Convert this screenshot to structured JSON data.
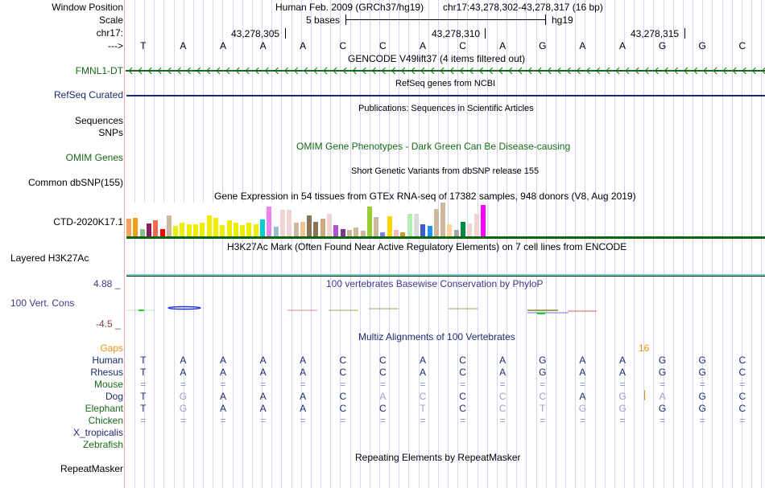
{
  "header": {
    "window_position_label": "Window Position",
    "scale_label": "Scale",
    "chrom_label": "chr17:",
    "strand_label": "--->",
    "assembly": "Human Feb. 2009 (GRCh37/hg19)",
    "position": "chr17:43,278,302-43,278,317 (16 bp)",
    "scale_text": "5 bases",
    "scale_db": "hg19",
    "ticks": [
      "43,278,305",
      "43,278,310",
      "43,278,315"
    ]
  },
  "reference_bases": [
    "T",
    "A",
    "A",
    "A",
    "A",
    "C",
    "C",
    "A",
    "C",
    "A",
    "G",
    "A",
    "A",
    "G",
    "G",
    "C"
  ],
  "tracks": {
    "gencode": {
      "title": "GENCODE V49lift37 (4 items filtered out)",
      "label": "FMNL1-DT",
      "color": "#166a16"
    },
    "refseq": {
      "title": "RefSeq genes from NCBI",
      "label": "RefSeq Curated",
      "color": "#1c2a6b"
    },
    "publications": {
      "title": "Publications: Sequences in Scientific Articles",
      "labels": [
        "Sequences",
        "SNPs"
      ]
    },
    "omim": {
      "title": "OMIM Gene Phenotypes - Dark Green Can Be Disease-causing",
      "label": "OMIM Genes",
      "color": "#166a16"
    },
    "dbsnp": {
      "title": "Short Genetic Variants from dbSNP release 155",
      "label": "Common dbSNP(155)"
    },
    "gtex": {
      "title": "Gene Expression in 54 tissues from GTEx RNA-seq of 17382 samples, 948 donors (V8, Aug 2019)",
      "label": "CTD-2020K17.1",
      "bars": [
        {
          "v": 0.52,
          "c": "#f6a05a"
        },
        {
          "v": 0.55,
          "c": "#eea01a"
        },
        {
          "v": 0.22,
          "c": "#8fbc8f"
        },
        {
          "v": 0.38,
          "c": "#8b1c62"
        },
        {
          "v": 0.48,
          "c": "#ee6a50"
        },
        {
          "v": 0.22,
          "c": "#ff0000"
        },
        {
          "v": 0.62,
          "c": "#cdb79e"
        },
        {
          "v": 0.3,
          "c": "#eeee00"
        },
        {
          "v": 0.4,
          "c": "#eeee00"
        },
        {
          "v": 0.36,
          "c": "#eeee00"
        },
        {
          "v": 0.36,
          "c": "#eeee00"
        },
        {
          "v": 0.4,
          "c": "#eeee00"
        },
        {
          "v": 0.63,
          "c": "#eeee00"
        },
        {
          "v": 0.54,
          "c": "#eeee00"
        },
        {
          "v": 0.33,
          "c": "#eeee00"
        },
        {
          "v": 0.48,
          "c": "#eeee00"
        },
        {
          "v": 0.4,
          "c": "#eeee00"
        },
        {
          "v": 0.33,
          "c": "#eeee00"
        },
        {
          "v": 0.4,
          "c": "#eeee00"
        },
        {
          "v": 0.36,
          "c": "#eeee00"
        },
        {
          "v": 0.5,
          "c": "#00cdcd"
        },
        {
          "v": 0.89,
          "c": "#ee82ee"
        },
        {
          "v": 0.28,
          "c": "#9ac0cd"
        },
        {
          "v": 0.78,
          "c": "#eed5d2"
        },
        {
          "v": 0.78,
          "c": "#eed5d2"
        },
        {
          "v": 0.4,
          "c": "#cdb79e"
        },
        {
          "v": 0.43,
          "c": "#eec591"
        },
        {
          "v": 0.63,
          "c": "#8b7355"
        },
        {
          "v": 0.43,
          "c": "#8b7355"
        },
        {
          "v": 0.52,
          "c": "#cdaa7d"
        },
        {
          "v": 0.66,
          "c": "#eed5d2"
        },
        {
          "v": 0.33,
          "c": "#b452cd"
        },
        {
          "v": 0.22,
          "c": "#7a378b"
        },
        {
          "v": 0.19,
          "c": "#cdb79e"
        },
        {
          "v": 0.27,
          "c": "#cdb79e"
        },
        {
          "v": 0.17,
          "c": "#cdb79e"
        },
        {
          "v": 0.89,
          "c": "#9acd32"
        },
        {
          "v": 0.57,
          "c": "#cdb79e"
        },
        {
          "v": 0.11,
          "c": "#7f7fff"
        },
        {
          "v": 0.6,
          "c": "#ffd700"
        },
        {
          "v": 0.19,
          "c": "#ffb6c1"
        },
        {
          "v": 0.11,
          "c": "#cd9b1d"
        },
        {
          "v": 0.66,
          "c": "#b4eeb4"
        },
        {
          "v": 0.66,
          "c": "#d9d9d9"
        },
        {
          "v": 0.36,
          "c": "#3a5fcd"
        },
        {
          "v": 0.3,
          "c": "#1e90ff"
        },
        {
          "v": 0.8,
          "c": "#cdb79e"
        },
        {
          "v": 1.0,
          "c": "#cdb79e"
        },
        {
          "v": 0.36,
          "c": "#ffd39b"
        },
        {
          "v": 0.19,
          "c": "#a6a6a6"
        },
        {
          "v": 0.43,
          "c": "#008b45"
        },
        {
          "v": 0.38,
          "c": "#eed5d2"
        },
        {
          "v": 0.66,
          "c": "#eed5d2"
        },
        {
          "v": 0.93,
          "c": "#ff00ff"
        }
      ]
    },
    "h3k27ac": {
      "title": "H3K27Ac Mark (Often Found Near Active Regulatory Elements) on 7 cell lines from ENCODE",
      "label": "Layered H3K27Ac"
    },
    "phylop": {
      "title": "100 vertebrates Basewise Conservation by PhyloP",
      "label": "100 Vert. Cons",
      "max_label": "4.88 _",
      "min_label": "-4.5 _"
    },
    "multiz": {
      "title": "Multiz Alignments of 100 Vertebrates",
      "gaps_label": "Gaps",
      "gap_count": "16",
      "species": [
        {
          "name": "Human",
          "color": "navy",
          "bases": [
            "T",
            "A",
            "A",
            "A",
            "A",
            "C",
            "C",
            "A",
            "C",
            "A",
            "G",
            "A",
            "A",
            "G",
            "G",
            "C"
          ],
          "style": [
            "d",
            "d",
            "d",
            "d",
            "d",
            "d",
            "d",
            "d",
            "d",
            "d",
            "d",
            "d",
            "d",
            "d",
            "d",
            "d"
          ]
        },
        {
          "name": "Rhesus",
          "color": "navy",
          "bases": [
            "T",
            "A",
            "A",
            "A",
            "A",
            "C",
            "C",
            "A",
            "C",
            "A",
            "G",
            "A",
            "A",
            "G",
            "G",
            "C"
          ],
          "style": [
            "d",
            "d",
            "d",
            "d",
            "d",
            "d",
            "d",
            "d",
            "d",
            "d",
            "d",
            "d",
            "d",
            "d",
            "d",
            "d"
          ]
        },
        {
          "name": "Mouse",
          "color": "grn",
          "bases": [
            "=",
            "=",
            "=",
            "=",
            "=",
            "=",
            "=",
            "=",
            "=",
            "=",
            "=",
            "=",
            "=",
            "=",
            "=",
            "="
          ],
          "style": [
            "e",
            "e",
            "e",
            "e",
            "e",
            "e",
            "e",
            "e",
            "e",
            "e",
            "e",
            "e",
            "e",
            "e",
            "e",
            "e"
          ]
        },
        {
          "name": "Dog",
          "color": "navy",
          "bases": [
            "T",
            "G",
            "A",
            "A",
            "A",
            "C",
            "A",
            "C",
            "C",
            "C",
            "C",
            "A",
            "G",
            "A",
            "G",
            "C"
          ],
          "style": [
            "d",
            "l",
            "d",
            "d",
            "d",
            "d",
            "l",
            "l",
            "d",
            "l",
            "l",
            "d",
            "l",
            "l",
            "d",
            "d"
          ]
        },
        {
          "name": "Elephant",
          "color": "grn",
          "bases": [
            "T",
            "G",
            "A",
            "A",
            "A",
            "C",
            "C",
            "T",
            "C",
            "C",
            "T",
            "G",
            "G",
            "G",
            "G",
            "C"
          ],
          "style": [
            "d",
            "l",
            "d",
            "d",
            "d",
            "d",
            "d",
            "l",
            "d",
            "l",
            "l",
            "l",
            "l",
            "d",
            "d",
            "d"
          ]
        },
        {
          "name": "Chicken",
          "color": "grn",
          "bases": [
            "=",
            "=",
            "=",
            "=",
            "=",
            "=",
            "=",
            "=",
            "=",
            "=",
            "=",
            "=",
            "=",
            "=",
            "=",
            "="
          ],
          "style": [
            "e",
            "e",
            "e",
            "e",
            "e",
            "e",
            "e",
            "e",
            "e",
            "e",
            "e",
            "e",
            "e",
            "e",
            "e",
            "e"
          ]
        },
        {
          "name": "X_tropicalis",
          "color": "navy",
          "bases": [],
          "style": []
        },
        {
          "name": "Zebrafish",
          "color": "grn",
          "bases": [],
          "style": []
        }
      ]
    },
    "repeatmasker": {
      "title": "Repeating Elements by RepeatMasker",
      "label": "RepeatMasker"
    }
  }
}
